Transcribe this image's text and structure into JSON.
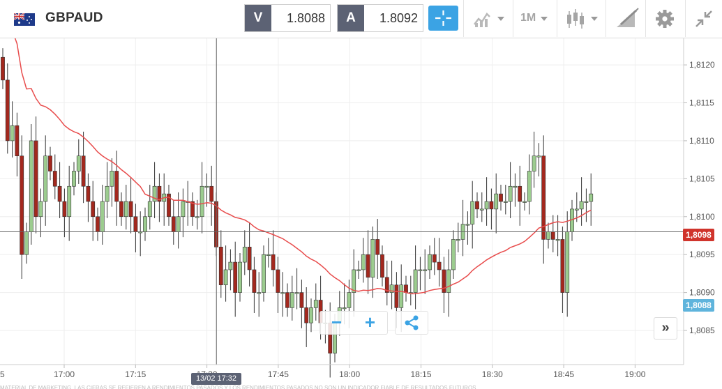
{
  "header": {
    "flag_icon": "gb-au-flag-icon",
    "pair": "GBPAUD",
    "sell_tag": "V",
    "sell_price": "1.8088",
    "buy_tag": "A",
    "buy_price": "1.8092",
    "crosshair_icon": "crosshair-icon",
    "indicators_icon": "indicators-icon",
    "timeframe": "1M",
    "chart_type_icon": "candlestick-icon",
    "drawing_icon": "drawing-tools-icon",
    "settings_icon": "gear-icon",
    "collapse_icon": "collapse-icon"
  },
  "colors": {
    "accent": "#3ba3e4",
    "dark_tag": "#5c6274",
    "bull": "#9ccc8f",
    "bear": "#a3281e",
    "moving_average": "#e84c4c",
    "bid_tag": "#d0342c",
    "ask_tag": "#5fb4dc"
  },
  "chart_data": {
    "type": "candlestick",
    "instrument": "GBPAUD",
    "timeframe": "1M",
    "x_ticks": [
      "17:00",
      "17:15",
      "17:30",
      "17:45",
      "18:00",
      "18:15",
      "18:30",
      "18:45",
      "19:00"
    ],
    "x_tick_first_partial": "5",
    "y_ticks": [
      "1,8085",
      "1,8090",
      "1,8095",
      "1,8100",
      "1,8105",
      "1,8110",
      "1,8115",
      "1,8120"
    ],
    "ylim": [
      1.80805,
      1.81235
    ],
    "crosshair": {
      "time": "13/02 17:32",
      "price": "1,8098"
    },
    "current_price_label": "1,8088",
    "moving_average_label": "",
    "series_closes": [
      1.8118,
      1.811,
      1.8112,
      1.8108,
      1.8095,
      1.8098,
      1.811,
      1.81,
      1.8102,
      1.8108,
      1.8106,
      1.8104,
      1.8102,
      1.81,
      1.8104,
      1.8106,
      1.8108,
      1.8104,
      1.8102,
      1.81,
      1.8098,
      1.8102,
      1.8104,
      1.8106,
      1.8102,
      1.81,
      1.8102,
      1.81,
      1.8098,
      1.8098,
      1.81,
      1.8102,
      1.8104,
      1.8102,
      1.8103,
      1.81,
      1.8098,
      1.81,
      1.8102,
      1.8102,
      1.81,
      1.81,
      1.8104,
      1.8104,
      1.8102,
      1.8096,
      1.8091,
      1.8093,
      1.8094,
      1.809,
      1.8094,
      1.8096,
      1.8093,
      1.809,
      1.809,
      1.8095,
      1.8095,
      1.8093,
      1.809,
      1.809,
      1.8088,
      1.809,
      1.809,
      1.8088,
      1.8086,
      1.8088,
      1.8089,
      1.8086,
      1.8086,
      1.8082,
      1.8086,
      1.8088,
      1.8088,
      1.809,
      1.8093,
      1.8093,
      1.8095,
      1.8092,
      1.8097,
      1.8095,
      1.8092,
      1.809,
      1.8091,
      1.8088,
      1.8091,
      1.809,
      1.809,
      1.8093,
      1.8093,
      1.8093,
      1.8095,
      1.8094,
      1.8093,
      1.809,
      1.8093,
      1.8097,
      1.8097,
      1.8099,
      1.8099,
      1.8102,
      1.8101,
      1.8101,
      1.8102,
      1.8101,
      1.8103,
      1.8102,
      1.8102,
      1.8104,
      1.8104,
      1.8102,
      1.8102,
      1.8106,
      1.8108,
      1.8108,
      1.8097,
      1.8098,
      1.8097,
      1.8097,
      1.809,
      1.8098,
      1.8101,
      1.8101,
      1.8102,
      1.8102,
      1.8103
    ]
  },
  "overlay": {
    "zoom_out_label": "−",
    "zoom_in_label": "+",
    "share_icon": "share-icon",
    "scroll_latest_label": "»"
  },
  "footer": {
    "disclaimer": "MATERIAL DE MARKETING. LAS CIFRAS SE REFIEREN A RENDIMIENTOS PASADOS Y LOS RENDIMIENTOS PASADOS NO SON UN INDICADOR FIABLE DE RESULTADOS FUTUROS."
  }
}
